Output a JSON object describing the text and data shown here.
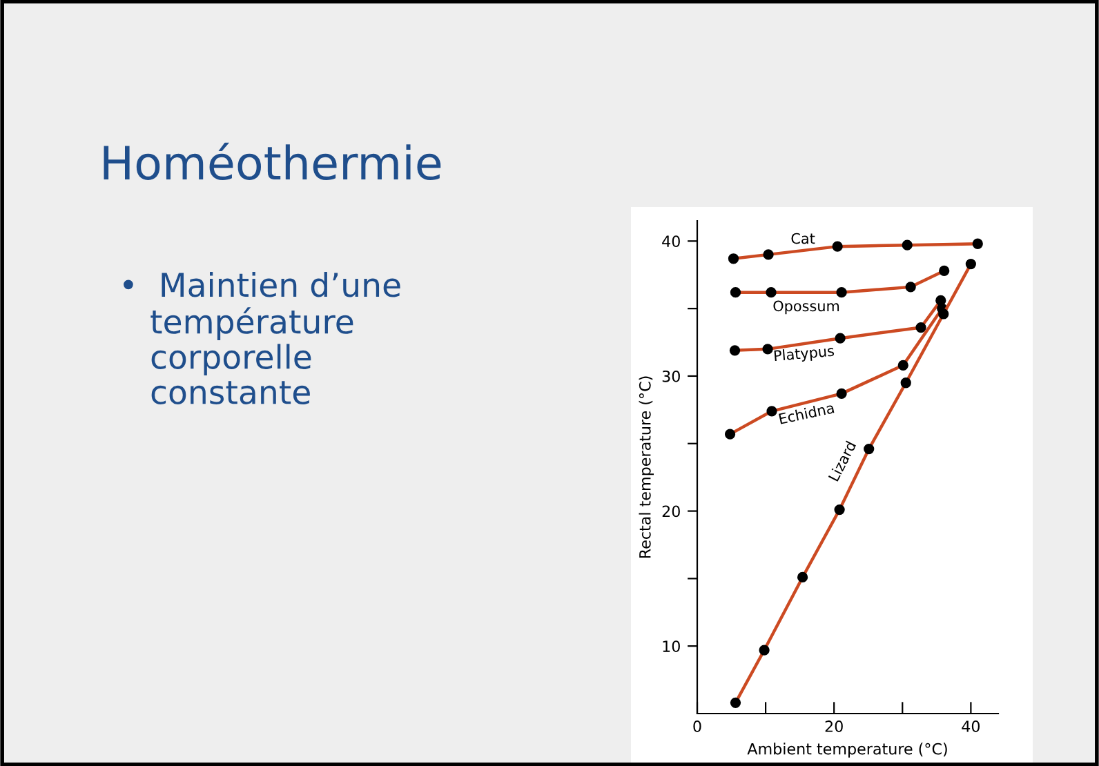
{
  "chart_data": {
    "type": "line",
    "title": "Homéothermie",
    "annotations": [
      "•  Maintien d’une\n   température\n   corporelle\n   constante"
    ],
    "xlabel": "Ambient temperature (°C)",
    "ylabel": "Rectal temperature (°C)",
    "xlim": [
      0,
      44
    ],
    "xticks": [
      0,
      {
        "value": 10,
        "label": null
      },
      20,
      {
        "value": 30,
        "label": null
      },
      40
    ],
    "ylim": [
      5,
      41.5
    ],
    "yticks": [
      10,
      {
        "value": 15,
        "label": null
      },
      20,
      {
        "value": 25,
        "label": null
      },
      30,
      {
        "value": 35,
        "label": null
      },
      40
    ],
    "grid": false,
    "legend": false,
    "marker": "circle",
    "line_style": "solid",
    "series": [
      {
        "name": "Cat",
        "color": "#cc4a22",
        "x": [
          5.3,
          10.4,
          20.5,
          30.7,
          41.0
        ],
        "values": [
          38.7,
          39.0,
          39.6,
          39.7,
          39.8
        ]
      },
      {
        "name": "Opossum",
        "color": "#cc4a22",
        "x": [
          5.6,
          10.8,
          21.1,
          31.2,
          36.1
        ],
        "values": [
          36.2,
          36.2,
          36.2,
          36.6,
          37.8
        ]
      },
      {
        "name": "Platypus",
        "color": "#cc4a22",
        "x": [
          5.5,
          10.3,
          20.9,
          32.7,
          35.6
        ],
        "values": [
          31.9,
          32.0,
          32.8,
          33.6,
          35.6
        ]
      },
      {
        "name": "Echidna",
        "color": "#cc4a22",
        "x": [
          4.8,
          10.9,
          21.1,
          30.1,
          35.8
        ],
        "values": [
          25.7,
          27.4,
          28.7,
          30.8,
          35.0
        ]
      },
      {
        "name": "Lizard",
        "color": "#cc4a22",
        "x": [
          5.6,
          9.8,
          15.4,
          20.8,
          25.1,
          30.5,
          36.0,
          40.0
        ],
        "values": [
          5.8,
          9.7,
          15.1,
          20.1,
          24.6,
          29.5,
          34.6,
          38.3
        ]
      }
    ]
  }
}
